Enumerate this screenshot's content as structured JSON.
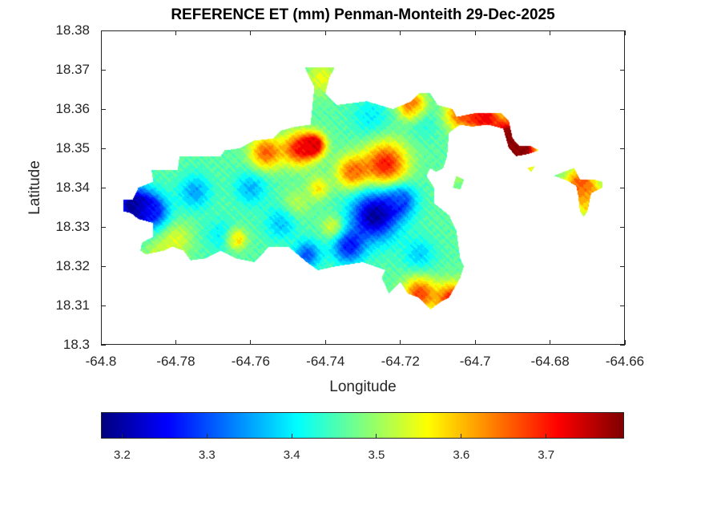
{
  "chart_data": {
    "type": "heatmap",
    "subtype": "filled-contour-map",
    "title": "REFERENCE ET (mm) Penman-Monteith 29-Dec-2025",
    "xlabel": "Longitude",
    "ylabel": "Latitude",
    "xlim": [
      -64.8,
      -64.66
    ],
    "ylim": [
      18.3,
      18.38
    ],
    "xticks": [
      -64.8,
      -64.78,
      -64.76,
      -64.74,
      -64.72,
      -64.7,
      -64.68,
      -64.66
    ],
    "xtick_labels": [
      "-64.8",
      "-64.78",
      "-64.76",
      "-64.74",
      "-64.72",
      "-64.7",
      "-64.68",
      "-64.66"
    ],
    "yticks": [
      18.3,
      18.31,
      18.32,
      18.33,
      18.34,
      18.35,
      18.36,
      18.37,
      18.38
    ],
    "ytick_labels": [
      "18.3",
      "18.31",
      "18.32",
      "18.33",
      "18.34",
      "18.35",
      "18.36",
      "18.37",
      "18.38"
    ],
    "grid": false,
    "colormap": "jet",
    "colorbar": {
      "orientation": "horizontal",
      "location": "below",
      "clim": [
        3.175,
        3.792
      ],
      "ticks": [
        3.2,
        3.3,
        3.4,
        3.5,
        3.6,
        3.7
      ],
      "tick_labels": [
        "3.2",
        "3.3",
        "3.4",
        "3.5",
        "3.6",
        "3.7"
      ]
    },
    "contour_levels": 22,
    "base_value": 3.46,
    "field_blobs": [
      {
        "lon": -64.7915,
        "lat": 18.3355,
        "value": 3.18,
        "sigma": 0.0035
      },
      {
        "lon": -64.786,
        "lat": 18.334,
        "value": 3.28,
        "sigma": 0.003
      },
      {
        "lon": -64.727,
        "lat": 18.333,
        "value": 3.19,
        "sigma": 0.0045
      },
      {
        "lon": -64.734,
        "lat": 18.325,
        "value": 3.27,
        "sigma": 0.003
      },
      {
        "lon": -64.72,
        "lat": 18.337,
        "value": 3.3,
        "sigma": 0.003
      },
      {
        "lon": -64.745,
        "lat": 18.323,
        "value": 3.3,
        "sigma": 0.0025
      },
      {
        "lon": -64.775,
        "lat": 18.339,
        "value": 3.35,
        "sigma": 0.003
      },
      {
        "lon": -64.76,
        "lat": 18.34,
        "value": 3.36,
        "sigma": 0.003
      },
      {
        "lon": -64.752,
        "lat": 18.331,
        "value": 3.37,
        "sigma": 0.003
      },
      {
        "lon": -64.768,
        "lat": 18.328,
        "value": 3.4,
        "sigma": 0.003
      },
      {
        "lon": -64.715,
        "lat": 18.323,
        "value": 3.38,
        "sigma": 0.003
      },
      {
        "lon": -64.728,
        "lat": 18.358,
        "value": 3.4,
        "sigma": 0.0035
      },
      {
        "lon": -64.714,
        "lat": 18.357,
        "value": 3.42,
        "sigma": 0.003
      },
      {
        "lon": -64.747,
        "lat": 18.35,
        "value": 3.71,
        "sigma": 0.003
      },
      {
        "lon": -64.743,
        "lat": 18.351,
        "value": 3.74,
        "sigma": 0.002
      },
      {
        "lon": -64.756,
        "lat": 18.349,
        "value": 3.66,
        "sigma": 0.003
      },
      {
        "lon": -64.724,
        "lat": 18.346,
        "value": 3.71,
        "sigma": 0.004
      },
      {
        "lon": -64.733,
        "lat": 18.344,
        "value": 3.65,
        "sigma": 0.003
      },
      {
        "lon": -64.742,
        "lat": 18.34,
        "value": 3.57,
        "sigma": 0.002
      },
      {
        "lon": -64.738,
        "lat": 18.33,
        "value": 3.56,
        "sigma": 0.002
      },
      {
        "lon": -64.748,
        "lat": 18.336,
        "value": 3.52,
        "sigma": 0.0025
      },
      {
        "lon": -64.764,
        "lat": 18.327,
        "value": 3.62,
        "sigma": 0.0018
      },
      {
        "lon": -64.78,
        "lat": 18.327,
        "value": 3.54,
        "sigma": 0.003
      },
      {
        "lon": -64.785,
        "lat": 18.323,
        "value": 3.52,
        "sigma": 0.0025
      },
      {
        "lon": -64.717,
        "lat": 18.361,
        "value": 3.68,
        "sigma": 0.0025
      },
      {
        "lon": -64.741,
        "lat": 18.368,
        "value": 3.55,
        "sigma": 0.003
      },
      {
        "lon": -64.715,
        "lat": 18.313,
        "value": 3.68,
        "sigma": 0.003
      },
      {
        "lon": -64.706,
        "lat": 18.3115,
        "value": 3.72,
        "sigma": 0.003
      },
      {
        "lon": -64.704,
        "lat": 18.359,
        "value": 3.65,
        "sigma": 0.003
      },
      {
        "lon": -64.698,
        "lat": 18.3585,
        "value": 3.72,
        "sigma": 0.003
      },
      {
        "lon": -64.691,
        "lat": 18.353,
        "value": 3.79,
        "sigma": 0.0035
      },
      {
        "lon": -64.688,
        "lat": 18.349,
        "value": 3.79,
        "sigma": 0.003
      },
      {
        "lon": -64.672,
        "lat": 18.341,
        "value": 3.67,
        "sigma": 0.003
      },
      {
        "lon": -64.669,
        "lat": 18.336,
        "value": 3.58,
        "sigma": 0.003
      },
      {
        "lon": -64.705,
        "lat": 18.343,
        "value": 3.5,
        "sigma": 0.002
      }
    ],
    "land_outline_lonlat": [
      [
        -64.794,
        18.337
      ],
      [
        -64.7915,
        18.337
      ],
      [
        -64.79,
        18.34
      ],
      [
        -64.786,
        18.3415
      ],
      [
        -64.7865,
        18.3445
      ],
      [
        -64.7795,
        18.3445
      ],
      [
        -64.779,
        18.348
      ],
      [
        -64.768,
        18.348
      ],
      [
        -64.767,
        18.3495
      ],
      [
        -64.763,
        18.35
      ],
      [
        -64.759,
        18.352
      ],
      [
        -64.754,
        18.3525
      ],
      [
        -64.752,
        18.3545
      ],
      [
        -64.748,
        18.3555
      ],
      [
        -64.744,
        18.356
      ],
      [
        -64.743,
        18.3655
      ],
      [
        -64.7455,
        18.3705
      ],
      [
        -64.7375,
        18.3705
      ],
      [
        -64.739,
        18.368
      ],
      [
        -64.74,
        18.364
      ],
      [
        -64.737,
        18.361
      ],
      [
        -64.729,
        18.362
      ],
      [
        -64.722,
        18.36
      ],
      [
        -64.717,
        18.362
      ],
      [
        -64.715,
        18.364
      ],
      [
        -64.712,
        18.364
      ],
      [
        -64.71,
        18.361
      ],
      [
        -64.706,
        18.36
      ],
      [
        -64.705,
        18.358
      ],
      [
        -64.7,
        18.359
      ],
      [
        -64.693,
        18.359
      ],
      [
        -64.691,
        18.357
      ],
      [
        -64.69,
        18.3525
      ],
      [
        -64.688,
        18.3505
      ],
      [
        -64.685,
        18.3505
      ],
      [
        -64.683,
        18.3495
      ],
      [
        -64.686,
        18.3485
      ],
      [
        -64.689,
        18.348
      ],
      [
        -64.691,
        18.35
      ],
      [
        -64.6925,
        18.355
      ],
      [
        -64.6965,
        18.356
      ],
      [
        -64.701,
        18.3555
      ],
      [
        -64.704,
        18.356
      ],
      [
        -64.707,
        18.354
      ],
      [
        -64.7075,
        18.348
      ],
      [
        -64.7085,
        18.345
      ],
      [
        -64.7105,
        18.344
      ],
      [
        -64.712,
        18.345
      ],
      [
        -64.713,
        18.343
      ],
      [
        -64.711,
        18.34
      ],
      [
        -64.711,
        18.336
      ],
      [
        -64.707,
        18.333
      ],
      [
        -64.705,
        18.329
      ],
      [
        -64.704,
        18.322
      ],
      [
        -64.703,
        18.32
      ],
      [
        -64.704,
        18.317
      ],
      [
        -64.707,
        18.312
      ],
      [
        -64.709,
        18.311
      ],
      [
        -64.712,
        18.309
      ],
      [
        -64.715,
        18.312
      ],
      [
        -64.718,
        18.313
      ],
      [
        -64.72,
        18.316
      ],
      [
        -64.723,
        18.313
      ],
      [
        -64.725,
        18.317
      ],
      [
        -64.724,
        18.319
      ],
      [
        -64.73,
        18.321
      ],
      [
        -64.737,
        18.32
      ],
      [
        -64.742,
        18.319
      ],
      [
        -64.745,
        18.321
      ],
      [
        -64.75,
        18.325
      ],
      [
        -64.755,
        18.325
      ],
      [
        -64.759,
        18.321
      ],
      [
        -64.764,
        18.322
      ],
      [
        -64.768,
        18.324
      ],
      [
        -64.772,
        18.322
      ],
      [
        -64.776,
        18.3215
      ],
      [
        -64.778,
        18.324
      ],
      [
        -64.781,
        18.325
      ],
      [
        -64.783,
        18.324
      ],
      [
        -64.788,
        18.323
      ],
      [
        -64.7895,
        18.324
      ],
      [
        -64.789,
        18.326
      ],
      [
        -64.786,
        18.3275
      ],
      [
        -64.786,
        18.331
      ],
      [
        -64.79,
        18.332
      ],
      [
        -64.792,
        18.3335
      ],
      [
        -64.794,
        18.334
      ]
    ],
    "islands_lonlat": [
      [
        [
          -64.675,
          18.3445
        ],
        [
          -64.6735,
          18.345
        ],
        [
          -64.672,
          18.342
        ],
        [
          -64.668,
          18.342
        ],
        [
          -64.666,
          18.3415
        ],
        [
          -64.666,
          18.34
        ],
        [
          -64.669,
          18.3385
        ],
        [
          -64.67,
          18.334
        ],
        [
          -64.671,
          18.3325
        ],
        [
          -64.672,
          18.334
        ],
        [
          -64.6725,
          18.338
        ],
        [
          -64.673,
          18.3405
        ],
        [
          -64.676,
          18.342
        ],
        [
          -64.679,
          18.343
        ]
      ],
      [
        [
          -64.705,
          18.343
        ],
        [
          -64.703,
          18.342
        ],
        [
          -64.704,
          18.3395
        ],
        [
          -64.706,
          18.34
        ]
      ],
      [
        [
          -64.685,
          18.344
        ],
        [
          -64.684,
          18.3455
        ],
        [
          -64.686,
          18.345
        ]
      ]
    ]
  }
}
